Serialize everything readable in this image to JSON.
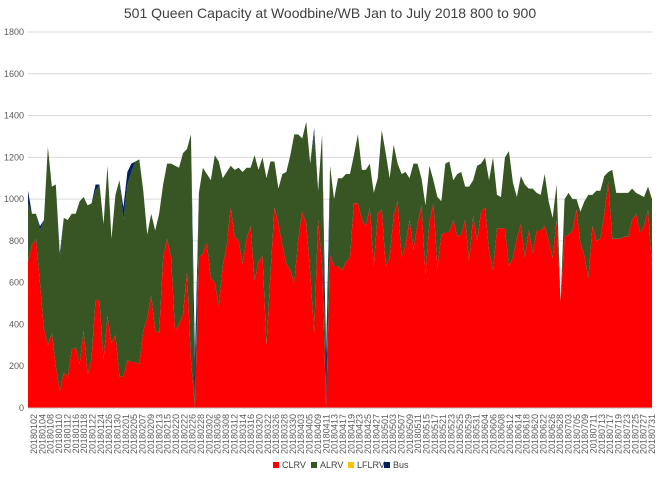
{
  "chart_data": {
    "type": "area",
    "stacked": true,
    "title": "501 Queen Capacity at Woodbine/WB Jan to July 2018 800 to 900",
    "xlabel": "",
    "ylabel": "",
    "ylim": [
      0,
      1800
    ],
    "yticks": [
      0,
      200,
      400,
      600,
      800,
      1000,
      1200,
      1400,
      1600,
      1800
    ],
    "grid": true,
    "legend_position": "bottom",
    "x_tick_labels": [
      "20180102",
      "20180104",
      "20180108",
      "20180110",
      "20180112",
      "20180116",
      "20180118",
      "20180122",
      "20180124",
      "20180126",
      "20180130",
      "20180201",
      "20180205",
      "20180207",
      "20180209",
      "20180213",
      "20180215",
      "20180220",
      "20180222",
      "20180226",
      "20180228",
      "20180302",
      "20180306",
      "20180308",
      "20180312",
      "20180314",
      "20180316",
      "20180320",
      "20180322",
      "20180326",
      "20180328",
      "20180330",
      "20180403",
      "20180405",
      "20180409",
      "20180411",
      "20180413",
      "20180417",
      "20180419",
      "20180423",
      "20180425",
      "20180427",
      "20180501",
      "20180503",
      "20180507",
      "20180509",
      "20180511",
      "20180515",
      "20180517",
      "20180521",
      "20180523",
      "20180525",
      "20180529",
      "20180531",
      "20180604",
      "20180606",
      "20180608",
      "20180612",
      "20180614",
      "20180618",
      "20180620",
      "20180622",
      "20180626",
      "20180628",
      "20180703",
      "20180705",
      "20180709",
      "20180711",
      "20180713",
      "20180717",
      "20180719",
      "20180723",
      "20180725",
      "20180727",
      "20180731"
    ],
    "colors": {
      "CLRV": "#ff0000",
      "ALRV": "#375623",
      "LFLRV": "#ffc000",
      "Bus": "#002060"
    },
    "series": [
      {
        "name": "CLRV",
        "values": [
          700,
          780,
          810,
          600,
          380,
          300,
          360,
          200,
          80,
          170,
          150,
          280,
          290,
          210,
          370,
          160,
          240,
          520,
          510,
          230,
          440,
          310,
          350,
          150,
          150,
          230,
          220,
          220,
          210,
          370,
          430,
          540,
          370,
          360,
          720,
          810,
          720,
          370,
          400,
          450,
          650,
          230,
          0,
          720,
          740,
          790,
          620,
          600,
          490,
          680,
          780,
          960,
          820,
          800,
          690,
          810,
          870,
          610,
          700,
          730,
          300,
          640,
          960,
          880,
          780,
          690,
          660,
          600,
          810,
          940,
          880,
          650,
          360,
          900,
          680,
          0,
          730,
          680,
          680,
          660,
          700,
          720,
          980,
          980,
          900,
          870,
          960,
          680,
          930,
          950,
          680,
          720,
          920,
          990,
          720,
          780,
          900,
          760,
          880,
          970,
          640,
          890,
          980,
          670,
          830,
          840,
          840,
          900,
          820,
          830,
          900,
          700,
          920,
          800,
          940,
          960,
          750,
          660,
          860,
          860,
          860,
          680,
          720,
          810,
          880,
          720,
          850,
          740,
          850,
          850,
          870,
          800,
          720,
          900,
          510,
          820,
          830,
          850,
          950,
          790,
          730,
          620,
          870,
          800,
          810,
          930,
          1080,
          810,
          810,
          810,
          820,
          820,
          900,
          930,
          840,
          870,
          950,
          680
        ],
        "_comment": ""
      },
      {
        "name": "ALRV",
        "values": [
          280,
          150,
          120,
          250,
          520,
          950,
          700,
          870,
          640,
          740,
          750,
          650,
          640,
          780,
          640,
          810,
          740,
          520,
          560,
          650,
          720,
          500,
          670,
          940,
          750,
          840,
          910,
          960,
          980,
          670,
          400,
          390,
          480,
          570,
          350,
          360,
          450,
          790,
          750,
          770,
          590,
          1080,
          0,
          310,
          410,
          330,
          470,
          610,
          690,
          420,
          350,
          200,
          320,
          350,
          440,
          340,
          280,
          600,
          440,
          470,
          800,
          540,
          220,
          170,
          340,
          440,
          550,
          710,
          500,
          350,
          490,
          520,
          960,
          140,
          630,
          0,
          430,
          320,
          420,
          440,
          420,
          400,
          230,
          330,
          240,
          270,
          210,
          350,
          170,
          380,
          540,
          380,
          340,
          180,
          400,
          350,
          200,
          410,
          290,
          130,
          330,
          270,
          110,
          340,
          160,
          330,
          340,
          190,
          300,
          300,
          160,
          360,
          170,
          360,
          230,
          240,
          340,
          540,
          160,
          150,
          340,
          550,
          360,
          200,
          230,
          350,
          200,
          310,
          180,
          170,
          250,
          190,
          190,
          170,
          0,
          180,
          200,
          150,
          50,
          150,
          260,
          400,
          150,
          240,
          230,
          180,
          50,
          330,
          220,
          220,
          210,
          210,
          150,
          100,
          180,
          140,
          110,
          320
        ],
        "_comment": ""
      },
      {
        "name": "LFLRV",
        "values": [
          0,
          0,
          0,
          0,
          0,
          0,
          0,
          0,
          0,
          0,
          0,
          0,
          0,
          0,
          0,
          0,
          0,
          0,
          0,
          0,
          0,
          0,
          0,
          0,
          0,
          0,
          0,
          0,
          0,
          0,
          0,
          0,
          0,
          0,
          0,
          0,
          0,
          0,
          0,
          0,
          0,
          0,
          0,
          0,
          0,
          0,
          0,
          0,
          0,
          0,
          0,
          0,
          0,
          0,
          0,
          0,
          0,
          0,
          0,
          0,
          0,
          0,
          0,
          0,
          0,
          0,
          0,
          0,
          0,
          0,
          0,
          0,
          0,
          0,
          0,
          0,
          0,
          0,
          0,
          0,
          0,
          0,
          0,
          0,
          0,
          0,
          0,
          0,
          0,
          0,
          0,
          0,
          0,
          0,
          0,
          0,
          0,
          0,
          0,
          0,
          0,
          0,
          0,
          0,
          0,
          0,
          0,
          0,
          0,
          0,
          0,
          0,
          0,
          0,
          0,
          0,
          0,
          0,
          0,
          0,
          0,
          0,
          0,
          0,
          0,
          0,
          0,
          0,
          0,
          0,
          0,
          0,
          0,
          0,
          0,
          0,
          0,
          0,
          0,
          0,
          0,
          0,
          0,
          0,
          0,
          0,
          0,
          0,
          0,
          0,
          0,
          0,
          0,
          0,
          0,
          0,
          0,
          0
        ]
      },
      {
        "name": "Bus",
        "values": [
          60,
          0,
          0,
          20,
          0,
          0,
          0,
          0,
          20,
          0,
          0,
          0,
          0,
          0,
          0,
          0,
          0,
          30,
          0,
          0,
          0,
          0,
          0,
          0,
          60,
          60,
          40,
          0,
          0,
          0,
          0,
          0,
          0,
          0,
          0,
          0,
          0,
          0,
          0,
          0,
          0,
          0,
          230,
          0,
          0,
          0,
          0,
          0,
          0,
          0,
          0,
          0,
          0,
          0,
          0,
          0,
          0,
          0,
          0,
          0,
          0,
          0,
          0,
          0,
          0,
          0,
          0,
          0,
          0,
          0,
          0,
          0,
          20,
          0,
          0,
          250,
          0,
          0,
          0,
          0,
          0,
          0,
          0,
          0,
          0,
          0,
          0,
          0,
          0,
          0,
          0,
          0,
          0,
          0,
          0,
          0,
          0,
          0,
          0,
          0,
          0,
          0,
          0,
          0,
          0,
          0,
          0,
          0,
          0,
          0,
          0,
          0,
          0,
          0,
          0,
          0,
          0,
          0,
          0,
          0,
          0,
          0,
          0,
          0,
          0,
          0,
          0,
          0,
          0,
          0,
          0,
          0,
          0,
          0,
          0,
          0,
          0,
          0,
          0,
          0,
          0,
          0,
          0,
          0,
          0,
          0,
          0,
          0,
          0,
          0,
          0,
          0,
          0,
          0
        ]
      }
    ]
  }
}
